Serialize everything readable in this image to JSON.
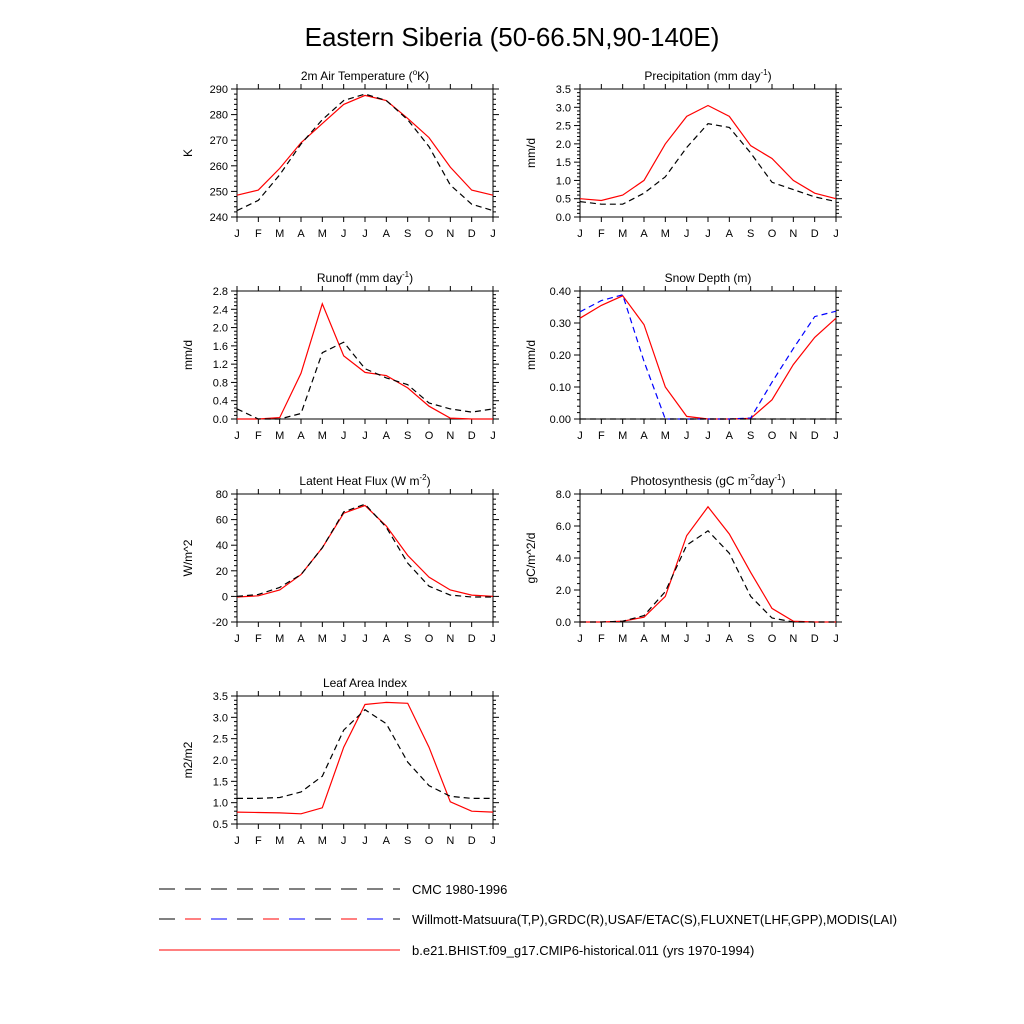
{
  "figure": {
    "title": "Eastern Siberia (50-66.5N,90-140E)"
  },
  "months": [
    "J",
    "F",
    "M",
    "A",
    "M",
    "J",
    "J",
    "A",
    "S",
    "O",
    "N",
    "D",
    "J"
  ],
  "colors": {
    "model": "#ff0000",
    "obs": "#000000",
    "obs_alt": "#0000ff"
  },
  "legend": [
    {
      "label": "CMC 1980-1996",
      "style": "dash-black"
    },
    {
      "label": "Willmott-Matsuura(T,P),GRDC(R),USAF/ETAC(S),FLUXNET(LHF,GPP),MODIS(LAI)",
      "style": "dash-mixed"
    },
    {
      "label": "b.e21.BHIST.f09_g17.CMIP6-historical.011 (yrs 1970-1994)",
      "style": "solid-red"
    }
  ],
  "chart_data": [
    {
      "type": "line",
      "title": "2m Air Temperature (°K)",
      "title_parts": [
        "2m Air Temperature (",
        "o",
        "K)"
      ],
      "ylabel": "K",
      "ylim": [
        240,
        290
      ],
      "yticks": [
        "240",
        "250",
        "260",
        "270",
        "280",
        "290"
      ],
      "yvals": [
        240,
        250,
        260,
        270,
        280,
        290
      ],
      "series": [
        {
          "role": "model",
          "values": [
            248.5,
            250.5,
            259,
            269,
            276.5,
            284,
            287.5,
            285.5,
            278.5,
            271,
            259.5,
            250.5,
            248.5
          ]
        },
        {
          "role": "obs",
          "values": [
            242.5,
            246.5,
            256.5,
            268.5,
            278,
            285.5,
            288,
            285.5,
            278,
            267.5,
            252.5,
            245,
            242.5
          ]
        }
      ]
    },
    {
      "type": "line",
      "title": "Precipitation (mm day-1)",
      "title_parts": [
        "Precipitation (mm day",
        "-1",
        ")"
      ],
      "ylabel": "mm/d",
      "ylim": [
        0,
        3.5
      ],
      "yticks": [
        "0.0",
        "0.5",
        "1.0",
        "1.5",
        "2.0",
        "2.5",
        "3.0",
        "3.5"
      ],
      "yvals": [
        0,
        0.5,
        1.0,
        1.5,
        2.0,
        2.5,
        3.0,
        3.5
      ],
      "series": [
        {
          "role": "model",
          "values": [
            0.5,
            0.45,
            0.6,
            1.0,
            2.0,
            2.75,
            3.05,
            2.75,
            1.95,
            1.6,
            1.0,
            0.65,
            0.5
          ]
        },
        {
          "role": "obs",
          "values": [
            0.42,
            0.35,
            0.35,
            0.65,
            1.1,
            1.9,
            2.55,
            2.45,
            1.75,
            0.95,
            0.75,
            0.55,
            0.42
          ]
        }
      ]
    },
    {
      "type": "line",
      "title": "Runoff (mm day-1)",
      "title_parts": [
        "Runoff (mm day",
        "-1",
        ")"
      ],
      "ylabel": "mm/d",
      "ylim": [
        0,
        2.8
      ],
      "yticks": [
        "0.0",
        "0.4",
        "0.8",
        "1.2",
        "1.6",
        "2.0",
        "2.4",
        "2.8"
      ],
      "yvals": [
        0,
        0.4,
        0.8,
        1.2,
        1.6,
        2.0,
        2.4,
        2.8
      ],
      "series": [
        {
          "role": "model",
          "values": [
            0.0,
            0.0,
            0.03,
            1.0,
            2.52,
            1.38,
            1.02,
            0.95,
            0.68,
            0.28,
            0.02,
            0.0,
            0.0
          ]
        },
        {
          "role": "obs",
          "values": [
            0.22,
            0.0,
            0.0,
            0.12,
            1.45,
            1.68,
            1.1,
            0.9,
            0.75,
            0.35,
            0.22,
            0.15,
            0.22
          ]
        }
      ]
    },
    {
      "type": "line",
      "title": "Snow Depth (m)",
      "title_parts": [
        "Snow Depth (m)",
        "",
        ""
      ],
      "ylabel": "mm/d",
      "ylim": [
        0,
        0.4
      ],
      "yticks": [
        "0.00",
        "0.10",
        "0.20",
        "0.30",
        "0.40"
      ],
      "yvals": [
        0,
        0.1,
        0.2,
        0.3,
        0.4
      ],
      "series": [
        {
          "role": "model",
          "values": [
            0.315,
            0.355,
            0.385,
            0.295,
            0.1,
            0.008,
            0.0,
            0.0,
            0.002,
            0.06,
            0.17,
            0.255,
            0.315
          ]
        },
        {
          "role": "obs_alt",
          "values": [
            0.335,
            0.37,
            0.388,
            0.18,
            0.0,
            0.0,
            0.0,
            0.0,
            0.003,
            0.115,
            0.22,
            0.32,
            0.337
          ]
        },
        {
          "role": "obs",
          "values": [
            0.0,
            0.0,
            0.0,
            0.0,
            0.0,
            0.0,
            0.0,
            0.0,
            0.0,
            0.0,
            0.0,
            0.0,
            0.0
          ]
        }
      ]
    },
    {
      "type": "line",
      "title": "Latent Heat Flux (W m-2)",
      "title_parts": [
        "Latent Heat Flux (W m",
        "-2",
        ")"
      ],
      "ylabel": "W/m^2",
      "ylim": [
        -20,
        80
      ],
      "yticks": [
        "-20",
        "0",
        "20",
        "40",
        "60",
        "80"
      ],
      "yvals": [
        -20,
        0,
        20,
        40,
        60,
        80
      ],
      "series": [
        {
          "role": "model",
          "values": [
            -0.5,
            0.5,
            5,
            17,
            38,
            65,
            71,
            55,
            32,
            15,
            5,
            1,
            0
          ]
        },
        {
          "role": "obs",
          "values": [
            0,
            1.5,
            7,
            17,
            38,
            66,
            72,
            54,
            26,
            8,
            1,
            -0.5,
            -0.5
          ]
        }
      ]
    },
    {
      "type": "line",
      "title": "Photosynthesis (gC m-2day-1)",
      "title_parts": [
        "Photosynthesis (gC m",
        "-2",
        "day",
        "-1",
        ")"
      ],
      "ylabel": "gC/m^2/d",
      "ylim": [
        0,
        8
      ],
      "yticks": [
        "0.0",
        "2.0",
        "4.0",
        "6.0",
        "8.0"
      ],
      "yvals": [
        0,
        2,
        4,
        6,
        8
      ],
      "series": [
        {
          "role": "model",
          "values": [
            0.0,
            0.0,
            0.05,
            0.3,
            1.6,
            5.4,
            7.2,
            5.5,
            3.1,
            0.85,
            0.05,
            0.0,
            0.0
          ]
        },
        {
          "role": "obs",
          "values": [
            0.0,
            0.0,
            0.05,
            0.4,
            1.9,
            4.8,
            5.7,
            4.3,
            1.6,
            0.25,
            0.0,
            0.0,
            0.0
          ]
        }
      ]
    },
    {
      "type": "line",
      "title": "Leaf Area Index",
      "title_parts": [
        "Leaf Area Index",
        "",
        ""
      ],
      "ylabel": "m2/m2",
      "ylim": [
        0.5,
        3.5
      ],
      "yticks": [
        "0.5",
        "1.0",
        "1.5",
        "2.0",
        "2.5",
        "3.0",
        "3.5"
      ],
      "yvals": [
        0.5,
        1.0,
        1.5,
        2.0,
        2.5,
        3.0,
        3.5
      ],
      "series": [
        {
          "role": "model",
          "values": [
            0.78,
            0.77,
            0.76,
            0.74,
            0.88,
            2.3,
            3.3,
            3.35,
            3.33,
            2.3,
            1.02,
            0.8,
            0.78
          ]
        },
        {
          "role": "obs",
          "values": [
            1.1,
            1.1,
            1.12,
            1.25,
            1.62,
            2.7,
            3.18,
            2.85,
            1.95,
            1.4,
            1.15,
            1.1,
            1.1
          ]
        }
      ]
    }
  ]
}
